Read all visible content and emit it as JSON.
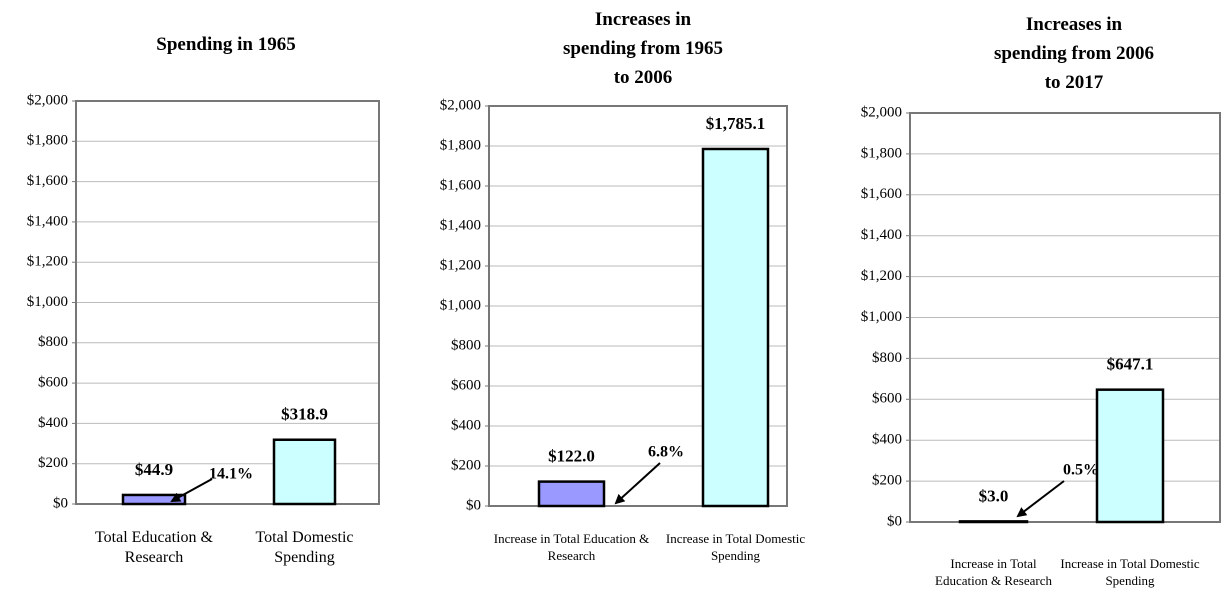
{
  "chart_data": [
    {
      "type": "bar",
      "title": "Spending in 1965",
      "categories": [
        "Total Education & Research",
        "Total Domestic Spending"
      ],
      "values": [
        44.9,
        318.9
      ],
      "value_labels": [
        "$44.9",
        "$318.9"
      ],
      "colors": [
        "#9999ff",
        "#ccffff"
      ],
      "annotation": "14.1%",
      "ylim": [
        0,
        2000
      ],
      "yticks": [
        {
          "value": 0,
          "label": "$0"
        },
        {
          "value": 200,
          "label": "$200"
        },
        {
          "value": 400,
          "label": "$400"
        },
        {
          "value": 600,
          "label": "$600"
        },
        {
          "value": 800,
          "label": "$800"
        },
        {
          "value": 1000,
          "label": "$1,000"
        },
        {
          "value": 1200,
          "label": "$1,200"
        },
        {
          "value": 1400,
          "label": "$1,400"
        },
        {
          "value": 1600,
          "label": "$1,600"
        },
        {
          "value": 1800,
          "label": "$1,800"
        },
        {
          "value": 2000,
          "label": "$2,000"
        }
      ],
      "grid": true
    },
    {
      "type": "bar",
      "title": "Increases in spending from 1965 to 2006",
      "categories": [
        "Increase in Total Education & Research",
        "Increase in Total Domestic Spending"
      ],
      "values": [
        122.0,
        1785.1
      ],
      "value_labels": [
        "$122.0",
        "$1,785.1"
      ],
      "colors": [
        "#9999ff",
        "#ccffff"
      ],
      "annotation": "6.8%",
      "ylim": [
        0,
        2000
      ],
      "yticks": [
        {
          "value": 0,
          "label": "$0"
        },
        {
          "value": 200,
          "label": "$200"
        },
        {
          "value": 400,
          "label": "$400"
        },
        {
          "value": 600,
          "label": "$600"
        },
        {
          "value": 800,
          "label": "$800"
        },
        {
          "value": 1000,
          "label": "$1,000"
        },
        {
          "value": 1200,
          "label": "$1,200"
        },
        {
          "value": 1400,
          "label": "$1,400"
        },
        {
          "value": 1600,
          "label": "$1,600"
        },
        {
          "value": 1800,
          "label": "$1,800"
        },
        {
          "value": 2000,
          "label": "$2,000"
        }
      ],
      "grid": true
    },
    {
      "type": "bar",
      "title": "Increases in spending from 2006 to 2017",
      "categories": [
        "Increase in Total Education & Research",
        "Increase in Total Domestic Spending"
      ],
      "values": [
        3.0,
        647.1
      ],
      "value_labels": [
        "$3.0",
        "$647.1"
      ],
      "colors": [
        "#9999ff",
        "#ccffff"
      ],
      "annotation": "0.5%",
      "ylim": [
        0,
        2000
      ],
      "yticks": [
        {
          "value": 0,
          "label": "$0"
        },
        {
          "value": 200,
          "label": "$200"
        },
        {
          "value": 400,
          "label": "$400"
        },
        {
          "value": 600,
          "label": "$600"
        },
        {
          "value": 800,
          "label": "$800"
        },
        {
          "value": 1000,
          "label": "$1,000"
        },
        {
          "value": 1200,
          "label": "$1,200"
        },
        {
          "value": 1400,
          "label": "$1,400"
        },
        {
          "value": 1600,
          "label": "$1,600"
        },
        {
          "value": 1800,
          "label": "$1,800"
        },
        {
          "value": 2000,
          "label": "$2,000"
        }
      ],
      "grid": true
    }
  ]
}
